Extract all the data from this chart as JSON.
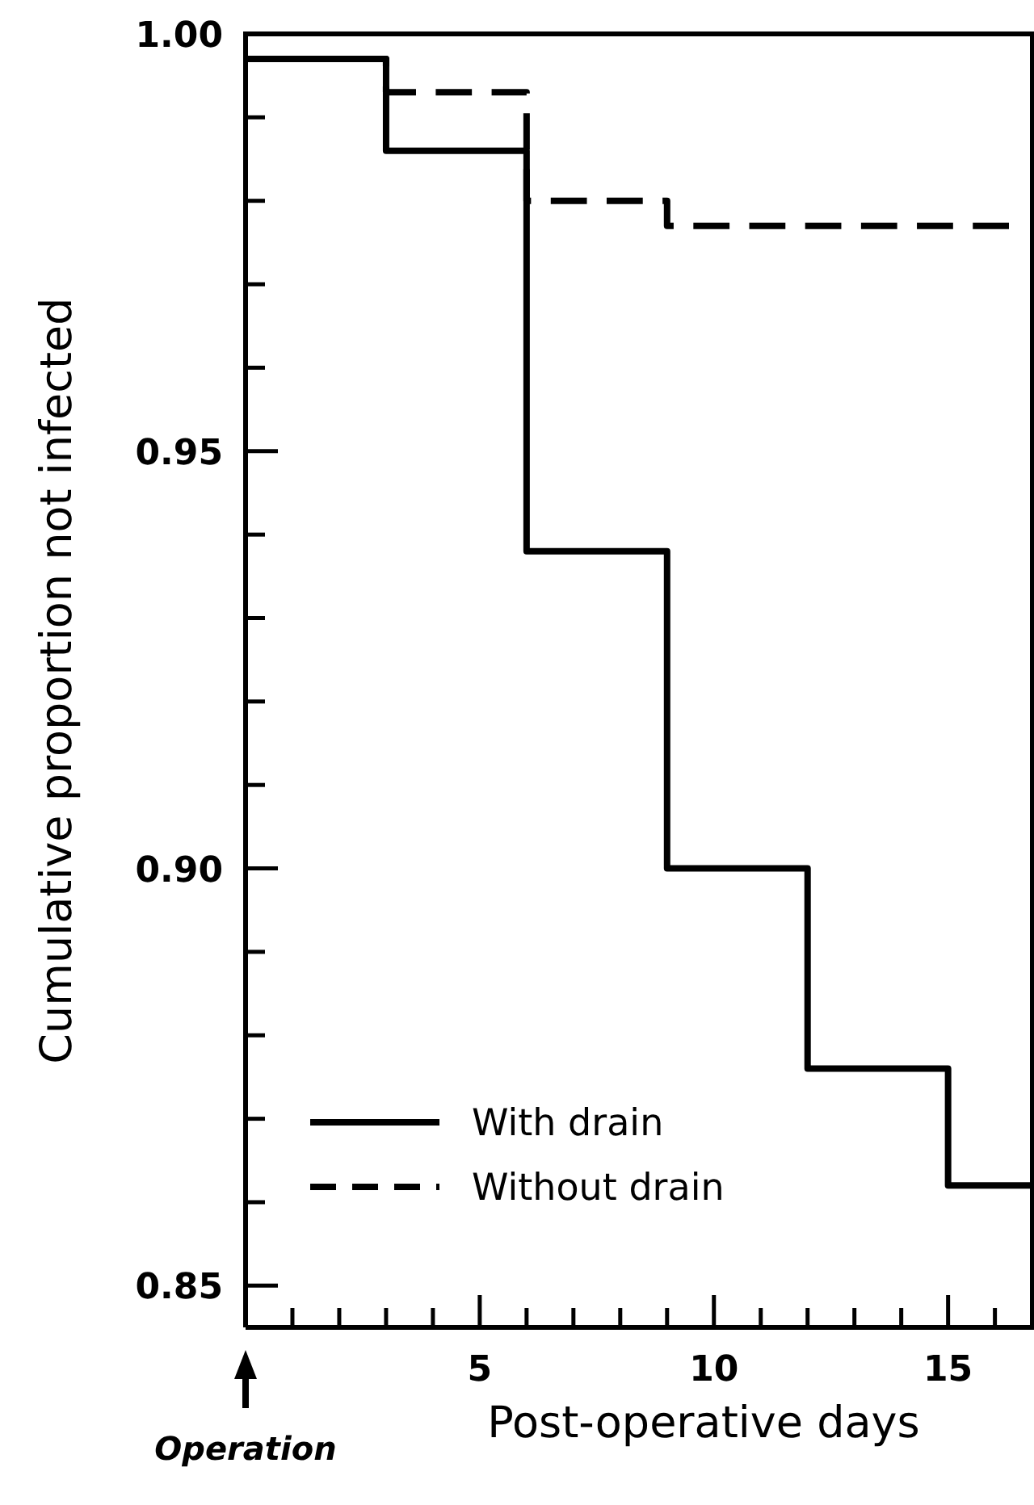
{
  "chart_data": {
    "type": "step",
    "xlabel": "Post-operative days",
    "ylabel": "Cumulative proportion not infected",
    "xlim": [
      0,
      16.8
    ],
    "ylim": [
      0.845,
      1.0
    ],
    "xticks": [
      {
        "value": 1,
        "label": null
      },
      {
        "value": 2,
        "label": null
      },
      {
        "value": 3,
        "label": null
      },
      {
        "value": 4,
        "label": null
      },
      5,
      {
        "value": 6,
        "label": null
      },
      {
        "value": 7,
        "label": null
      },
      {
        "value": 8,
        "label": null
      },
      {
        "value": 9,
        "label": null
      },
      10,
      {
        "value": 11,
        "label": null
      },
      {
        "value": 12,
        "label": null
      },
      {
        "value": 13,
        "label": null
      },
      {
        "value": 14,
        "label": null
      },
      15,
      {
        "value": 16,
        "label": null
      }
    ],
    "yticks": [
      {
        "value": 0.85,
        "label": "0.85"
      },
      {
        "value": 0.86,
        "label": null
      },
      {
        "value": 0.87,
        "label": null
      },
      {
        "value": 0.88,
        "label": null
      },
      {
        "value": 0.89,
        "label": null
      },
      {
        "value": 0.9,
        "label": "0.90"
      },
      {
        "value": 0.91,
        "label": null
      },
      {
        "value": 0.92,
        "label": null
      },
      {
        "value": 0.93,
        "label": null
      },
      {
        "value": 0.94,
        "label": null
      },
      {
        "value": 0.95,
        "label": "0.95"
      },
      {
        "value": 0.96,
        "label": null
      },
      {
        "value": 0.97,
        "label": null
      },
      {
        "value": 0.98,
        "label": null
      },
      {
        "value": 0.99,
        "label": null
      },
      {
        "value": 1.0,
        "label": "1.00"
      }
    ],
    "series": [
      {
        "name": "With drain",
        "color": "#000000",
        "line_style": "solid",
        "x": [
          0,
          3,
          6,
          9,
          12,
          15,
          16.8
        ],
        "values": [
          0.997,
          0.986,
          0.938,
          0.9,
          0.876,
          0.862,
          0.862
        ]
      },
      {
        "name": "Without drain",
        "color": "#000000",
        "line_style": "dashed",
        "x": [
          0,
          3,
          6,
          9,
          16.3
        ],
        "values": [
          0.997,
          0.993,
          0.98,
          0.977,
          0.977
        ]
      }
    ],
    "legend": "bottom left",
    "grid": false,
    "marker": "none",
    "annotations": [
      {
        "text": "Operation",
        "x": 0
      }
    ]
  }
}
